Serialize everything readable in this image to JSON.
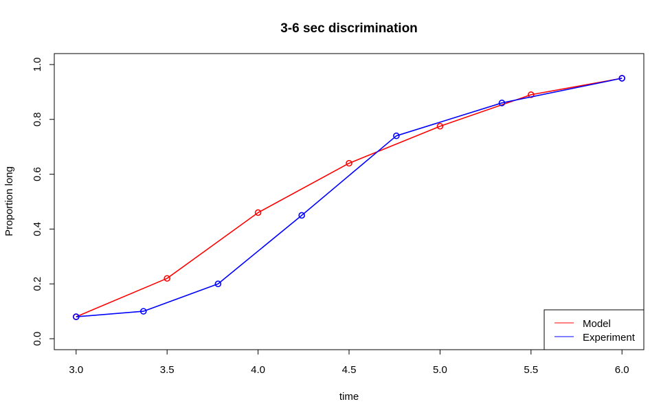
{
  "chart_data": {
    "type": "line",
    "title": "3-6 sec discrimination",
    "xlabel": "time",
    "ylabel": "Proportion long",
    "xlim": [
      2.88,
      6.12
    ],
    "ylim": [
      -0.04,
      1.04
    ],
    "xticks": [
      3.0,
      3.5,
      4.0,
      4.5,
      5.0,
      5.5,
      6.0
    ],
    "xtick_labels": [
      "3.0",
      "3.5",
      "4.0",
      "4.5",
      "5.0",
      "5.5",
      "6.0"
    ],
    "yticks": [
      0.0,
      0.2,
      0.4,
      0.6,
      0.8,
      1.0
    ],
    "ytick_labels": [
      "0.0",
      "0.2",
      "0.4",
      "0.6",
      "0.8",
      "1.0"
    ],
    "grid": false,
    "legend_position": "bottom-right",
    "series": [
      {
        "name": "Model",
        "color": "#ff0000",
        "x": [
          3.0,
          3.5,
          4.0,
          4.5,
          5.0,
          5.5,
          6.0
        ],
        "y": [
          0.08,
          0.22,
          0.46,
          0.64,
          0.775,
          0.89,
          0.95
        ]
      },
      {
        "name": "Experiment",
        "color": "#0000ff",
        "x": [
          3.0,
          3.37,
          3.78,
          4.24,
          4.76,
          5.34,
          6.0
        ],
        "y": [
          0.08,
          0.1,
          0.2,
          0.45,
          0.74,
          0.86,
          0.95
        ]
      }
    ]
  }
}
